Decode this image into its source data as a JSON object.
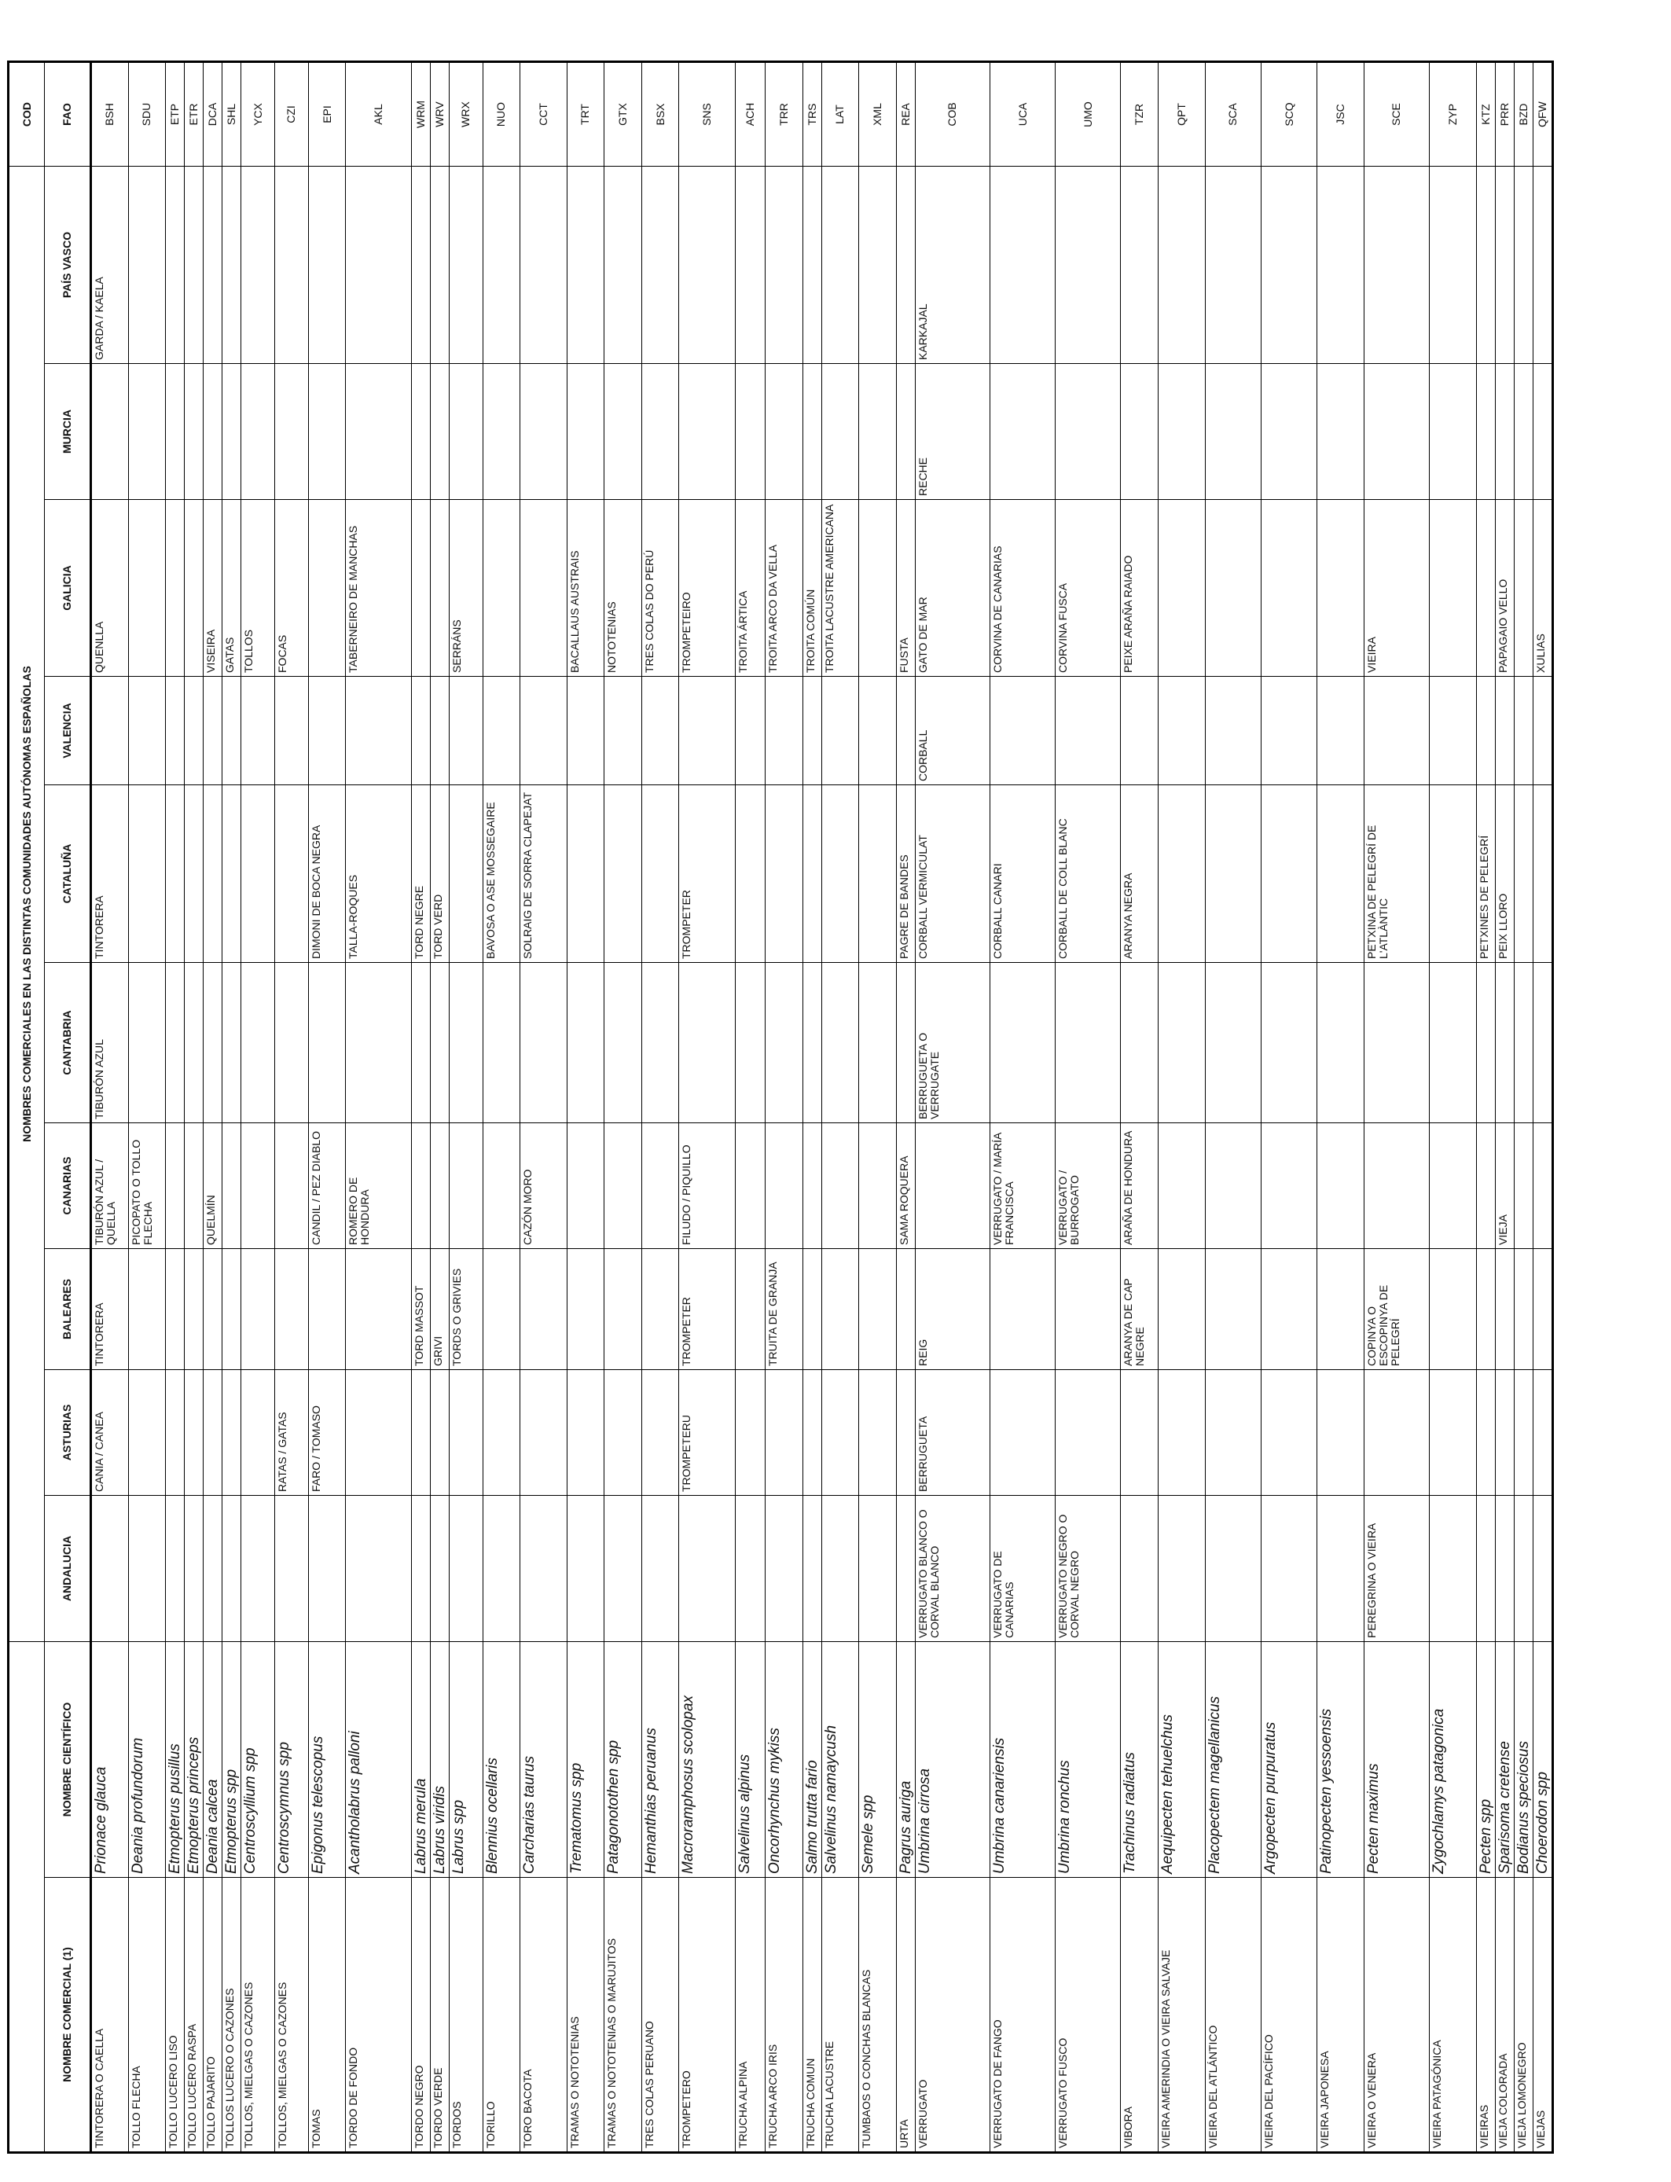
{
  "table": {
    "group_header": "NOMBRES COMERCIALES EN LAS DISTINTAS COMUNIDADES AUTÓNOMAS ESPAÑOLAS",
    "code_header": "COD",
    "columns": [
      "NOMBRE COMERCIAL (1)",
      "NOMBRE CIENTÍFICO",
      "ANDALUCIA",
      "ASTURIAS",
      "BALEARES",
      "CANARIAS",
      "CANTABRIA",
      "CATALUÑA",
      "VALENCIA",
      "GALICIA",
      "MURCIA",
      "PAÍS VASCO",
      "FAO"
    ],
    "rows": [
      [
        "TINTORERA O CAELLA",
        "Prionace glauca",
        null,
        "CANIA / CANEA",
        "TINTORERA",
        "TIBURÓN AZUL / QUELLA",
        "TIBURÓN AZUL",
        "TINTORERA",
        null,
        "QUENLLA",
        null,
        "GARDA / KAELA",
        "BSH"
      ],
      [
        "TOLLO FLECHA",
        "Deania profundorum",
        null,
        null,
        null,
        "PICOPATO O TOLLO FLECHA",
        null,
        null,
        null,
        null,
        null,
        null,
        "SDU"
      ],
      [
        "TOLLO LUCERO LISO",
        "Etmopterus pusillus",
        null,
        null,
        null,
        null,
        null,
        null,
        null,
        null,
        null,
        null,
        "ETP"
      ],
      [
        "TOLLO LUCERO RASPA",
        "Etmopterus princeps",
        null,
        null,
        null,
        null,
        null,
        null,
        null,
        null,
        null,
        null,
        "ETR"
      ],
      [
        "TOLLO PAJARITO",
        "Deania calcea",
        null,
        null,
        null,
        "QUELMÍN",
        null,
        null,
        null,
        "VISEIRA",
        null,
        null,
        "DCA"
      ],
      [
        "TOLLOS LUCERO O CAZONES",
        "Etmopterus spp",
        null,
        null,
        null,
        null,
        null,
        null,
        null,
        "GATAS",
        null,
        null,
        "SHL"
      ],
      [
        "TOLLOS, MIELGAS O CAZONES",
        "Centroscyllium spp",
        null,
        null,
        null,
        null,
        null,
        null,
        null,
        "TOLLOS",
        null,
        null,
        "YCX"
      ],
      [
        "TOLLOS, MIELGAS O CAZONES",
        "Centroscymnus spp",
        null,
        "RATAS / GATAS",
        null,
        null,
        null,
        null,
        null,
        "FOCAS",
        null,
        null,
        "CZI"
      ],
      [
        "TOMAS",
        "Epigonus telescopus",
        null,
        "FARO / TOMASO",
        null,
        "CANDIL / PEZ DIABLO",
        null,
        "DIMONI DE BOCA NEGRA",
        null,
        null,
        null,
        null,
        "EPI"
      ],
      [
        "TORDO DE FONDO",
        "Acantholabrus palloni",
        null,
        null,
        null,
        "ROMERO DE HONDURA",
        null,
        "TALLA-ROQUES",
        null,
        "TABERNEIRO DE MANCHAS",
        null,
        null,
        "AKL"
      ],
      [
        "TORDO NEGRO",
        "Labrus merula",
        null,
        null,
        "TORD MASSOT",
        null,
        null,
        "TORD NEGRE",
        null,
        null,
        null,
        null,
        "WRM"
      ],
      [
        "TORDO VERDE",
        "Labrus viridis",
        null,
        null,
        "GRIVI",
        null,
        null,
        "TORD VERD",
        null,
        null,
        null,
        null,
        "WRV"
      ],
      [
        "TORDOS",
        "Labrus spp",
        null,
        null,
        "TORDS O GRIVIES",
        null,
        null,
        null,
        null,
        "SERRÁNS",
        null,
        null,
        "WRX"
      ],
      [
        "TORILLO",
        "Blennius ocellaris",
        null,
        null,
        null,
        null,
        null,
        "BAVOSA O ASE MOSSEGAIRE",
        null,
        null,
        null,
        null,
        "NUO"
      ],
      [
        "TORO BACOTA",
        "Carcharias taurus",
        null,
        null,
        null,
        "CAZÓN MORO",
        null,
        "SOLRAIG DE SORRA CLAPEJAT",
        null,
        null,
        null,
        null,
        "CCT"
      ],
      [
        "TRAMAS O NOTOTENIAS",
        "Trematomus spp",
        null,
        null,
        null,
        null,
        null,
        null,
        null,
        "BACALLAUS AUSTRAIS",
        null,
        null,
        "TRT"
      ],
      [
        "TRAMAS O NOTOTENIAS O MARUJITOS",
        "Patagonotothen spp",
        null,
        null,
        null,
        null,
        null,
        null,
        null,
        "NOTOTENIAS",
        null,
        null,
        "GTX"
      ],
      [
        "TRES COLAS PERUANO",
        "Hemanthias peruanus",
        null,
        null,
        null,
        null,
        null,
        null,
        null,
        "TRES COLAS DO PERÚ",
        null,
        null,
        "BSX"
      ],
      [
        "TROMPETERO",
        "Macroramphosus scolopax",
        null,
        "TROMPETERU",
        "TROMPETER",
        "FILUDO / PIQUILLO",
        null,
        "TROMPETER",
        null,
        "TROMPETEIRO",
        null,
        null,
        "SNS"
      ],
      [
        "TRUCHA ALPINA",
        "Salvelinus alpinus",
        null,
        null,
        null,
        null,
        null,
        null,
        null,
        "TROITA ÁRTICA",
        null,
        null,
        "ACH"
      ],
      [
        "TRUCHA ARCO IRIS",
        "Oncorhynchus mykiss",
        null,
        null,
        "TRUITA DE GRANJA",
        null,
        null,
        null,
        null,
        "TROITA ARCO DA VELLA",
        null,
        null,
        "TRR"
      ],
      [
        "TRUCHA COMUN",
        "Salmo trutta fario",
        null,
        null,
        null,
        null,
        null,
        null,
        null,
        "TROITA COMÚN",
        null,
        null,
        "TRS"
      ],
      [
        "TRUCHA LACUSTRE",
        "Salvelinus namaycush",
        null,
        null,
        null,
        null,
        null,
        null,
        null,
        "TROITA LACUSTRE AMERICANA",
        null,
        null,
        "LAT"
      ],
      [
        "TUMBAOS O CONCHAS BLANCAS",
        "Semele spp",
        null,
        null,
        null,
        null,
        null,
        null,
        null,
        null,
        null,
        null,
        "XML"
      ],
      [
        "URTA",
        "Pagrus auriga",
        null,
        null,
        null,
        "SAMA ROQUERA",
        null,
        "PAGRE DE BANDES",
        null,
        "FUSTA",
        null,
        null,
        "REA"
      ],
      [
        "VERRUGATO",
        "Umbrina cirrosa",
        "VERRUGATO BLANCO O CORVAL BLANCO",
        "BERRUGUETA",
        "REIG",
        null,
        "BERRUGUETA O VERRUGATE",
        "CORBALL VERMICULAT",
        "CORBALL",
        "GATO DE MAR",
        "RECHE",
        "KARKAJAL",
        "COB"
      ],
      [
        "VERRUGATO DE FANGO",
        "Umbrina canariensis",
        "VERRUGATO DE CANARIAS",
        null,
        null,
        "VERRUGATO / MARÍA FRANCISCA",
        null,
        "CORBALL CANARI",
        null,
        "CORVINA DE CANARIAS",
        null,
        null,
        "UCA"
      ],
      [
        "VERRUGATO FUSCO",
        "Umbrina ronchus",
        "VERRUGATO NEGRO O CORVAL NEGRO",
        null,
        null,
        "VERRUGATO / BURROGATO",
        null,
        "CORBALL DE COLL BLANC",
        null,
        "CORVINA FUSCA",
        null,
        null,
        "UMO"
      ],
      [
        "VIBORA",
        "Trachinus radiatus",
        null,
        null,
        "ARANYA DE CAP NEGRE",
        "ARAÑA DE HONDURA",
        null,
        "ARANYA NEGRA",
        null,
        "PEIXE ARAÑA RAIADO",
        null,
        null,
        "TZR"
      ],
      [
        "VIEIRA AMERINDIA O VIEIRA SALVAJE",
        "Aequipecten tehuelchus",
        null,
        null,
        null,
        null,
        null,
        null,
        null,
        null,
        null,
        null,
        "QPT"
      ],
      [
        "VIEIRA DEL ATLÁNTICO",
        "Placopectem magellanicus",
        null,
        null,
        null,
        null,
        null,
        null,
        null,
        null,
        null,
        null,
        "SCA"
      ],
      [
        "VIEIRA DEL PACÍFICO",
        "Argopecten purpuratus",
        null,
        null,
        null,
        null,
        null,
        null,
        null,
        null,
        null,
        null,
        "SCQ"
      ],
      [
        "VIEIRA JAPONESA",
        "Patinopecten yessoensis",
        null,
        null,
        null,
        null,
        null,
        null,
        null,
        null,
        null,
        null,
        "JSC"
      ],
      [
        "VIEIRA O VENERA",
        "Pecten maximus",
        "PEREGRINA O VIEIRA",
        null,
        "COPINYA O ESCOPINYA DE PELEGRÍ",
        null,
        null,
        "PETXINA DE PELEGRÍ DE L'ATLÀNTIC",
        null,
        "VIEIRA",
        null,
        null,
        "SCE"
      ],
      [
        "VIEIRA PATAGÓNICA",
        "Zygochlamys patagonica",
        null,
        null,
        null,
        null,
        null,
        null,
        null,
        null,
        null,
        null,
        "ZYP"
      ],
      [
        "VIEIRAS",
        "Pecten spp",
        null,
        null,
        null,
        null,
        null,
        "PETXINES DE PELEGRÍ",
        null,
        null,
        null,
        null,
        "KTZ"
      ],
      [
        "VIEJA COLORADA",
        "Sparisoma cretense",
        null,
        null,
        null,
        "VIEJA",
        null,
        "PEIX LLORO",
        null,
        "PAPAGAIO VELLO",
        null,
        null,
        "PRR"
      ],
      [
        "VIEJA LOMONEGRO",
        "Bodianus speciosus",
        null,
        null,
        null,
        null,
        null,
        null,
        null,
        null,
        null,
        null,
        "BZD"
      ],
      [
        "VIEJAS",
        "Choerodon spp",
        null,
        null,
        null,
        null,
        null,
        null,
        null,
        "XULIAS",
        null,
        null,
        "QFW"
      ]
    ]
  }
}
